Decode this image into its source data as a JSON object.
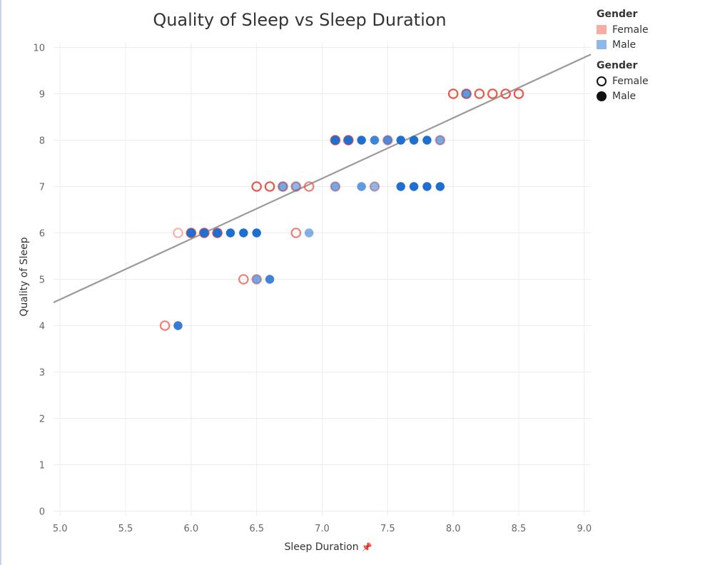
{
  "chart_data": {
    "type": "scatter",
    "title": "Quality of Sleep vs Sleep Duration",
    "xlabel": "Sleep Duration",
    "ylabel": "Quality of Sleep",
    "xlim": [
      4.95,
      9.05
    ],
    "ylim": [
      -0.1,
      10.1
    ],
    "x_ticks": [
      "5.0",
      "5.5",
      "6.0",
      "6.5",
      "7.0",
      "7.5",
      "8.0",
      "8.5",
      "9.0"
    ],
    "y_ticks": [
      "0",
      "1",
      "2",
      "3",
      "4",
      "5",
      "6",
      "7",
      "8",
      "9",
      "10"
    ],
    "grid": true,
    "trend_line": {
      "x": [
        4.95,
        9.05
      ],
      "y": [
        4.5,
        9.85
      ]
    },
    "series": [
      {
        "name": "Female",
        "marker": "open-circle",
        "color": "#e8574a",
        "points": [
          {
            "x": 5.8,
            "y": 4,
            "alpha": 0.75
          },
          {
            "x": 6.4,
            "y": 5,
            "alpha": 0.75
          },
          {
            "x": 6.5,
            "y": 5,
            "alpha": 0.6
          },
          {
            "x": 5.9,
            "y": 6,
            "alpha": 0.45
          },
          {
            "x": 6.0,
            "y": 6,
            "alpha": 1
          },
          {
            "x": 6.1,
            "y": 6,
            "alpha": 1
          },
          {
            "x": 6.2,
            "y": 6,
            "alpha": 1
          },
          {
            "x": 6.8,
            "y": 6,
            "alpha": 0.75
          },
          {
            "x": 6.5,
            "y": 7,
            "alpha": 1
          },
          {
            "x": 6.6,
            "y": 7,
            "alpha": 1
          },
          {
            "x": 6.7,
            "y": 7,
            "alpha": 0.85
          },
          {
            "x": 6.8,
            "y": 7,
            "alpha": 0.75
          },
          {
            "x": 6.9,
            "y": 7,
            "alpha": 0.75
          },
          {
            "x": 7.1,
            "y": 7,
            "alpha": 0.6
          },
          {
            "x": 7.4,
            "y": 7,
            "alpha": 0.55
          },
          {
            "x": 7.1,
            "y": 8,
            "alpha": 1
          },
          {
            "x": 7.2,
            "y": 8,
            "alpha": 1
          },
          {
            "x": 7.5,
            "y": 8,
            "alpha": 0.6
          },
          {
            "x": 7.9,
            "y": 8,
            "alpha": 0.6
          },
          {
            "x": 8.0,
            "y": 9,
            "alpha": 1
          },
          {
            "x": 8.1,
            "y": 9,
            "alpha": 1
          },
          {
            "x": 8.2,
            "y": 9,
            "alpha": 1
          },
          {
            "x": 8.3,
            "y": 9,
            "alpha": 1
          },
          {
            "x": 8.4,
            "y": 9,
            "alpha": 1
          },
          {
            "x": 8.5,
            "y": 9,
            "alpha": 1
          }
        ]
      },
      {
        "name": "Male",
        "marker": "filled-circle",
        "color": "#1f6fd1",
        "points": [
          {
            "x": 5.9,
            "y": 4,
            "alpha": 0.9
          },
          {
            "x": 6.5,
            "y": 5,
            "alpha": 0.6
          },
          {
            "x": 6.6,
            "y": 5,
            "alpha": 0.85
          },
          {
            "x": 6.0,
            "y": 6,
            "alpha": 1
          },
          {
            "x": 6.1,
            "y": 6,
            "alpha": 1
          },
          {
            "x": 6.2,
            "y": 6,
            "alpha": 1
          },
          {
            "x": 6.3,
            "y": 6,
            "alpha": 1
          },
          {
            "x": 6.4,
            "y": 6,
            "alpha": 1
          },
          {
            "x": 6.5,
            "y": 6,
            "alpha": 1
          },
          {
            "x": 6.9,
            "y": 6,
            "alpha": 0.55
          },
          {
            "x": 6.7,
            "y": 7,
            "alpha": 0.6
          },
          {
            "x": 6.8,
            "y": 7,
            "alpha": 0.5
          },
          {
            "x": 7.1,
            "y": 7,
            "alpha": 0.6
          },
          {
            "x": 7.3,
            "y": 7,
            "alpha": 0.7
          },
          {
            "x": 7.4,
            "y": 7,
            "alpha": 0.5
          },
          {
            "x": 7.6,
            "y": 7,
            "alpha": 1
          },
          {
            "x": 7.7,
            "y": 7,
            "alpha": 1
          },
          {
            "x": 7.8,
            "y": 7,
            "alpha": 1
          },
          {
            "x": 7.9,
            "y": 7,
            "alpha": 1
          },
          {
            "x": 7.1,
            "y": 8,
            "alpha": 1
          },
          {
            "x": 7.2,
            "y": 8,
            "alpha": 1
          },
          {
            "x": 7.3,
            "y": 8,
            "alpha": 1
          },
          {
            "x": 7.4,
            "y": 8,
            "alpha": 0.85
          },
          {
            "x": 7.5,
            "y": 8,
            "alpha": 0.8
          },
          {
            "x": 7.6,
            "y": 8,
            "alpha": 1
          },
          {
            "x": 7.7,
            "y": 8,
            "alpha": 1
          },
          {
            "x": 7.8,
            "y": 8,
            "alpha": 1
          },
          {
            "x": 7.9,
            "y": 8,
            "alpha": 0.6
          },
          {
            "x": 8.1,
            "y": 9,
            "alpha": 0.7
          }
        ]
      }
    ]
  },
  "legend": {
    "color": {
      "title": "Gender",
      "items": [
        {
          "label": "Female",
          "color": "#f4aea6"
        },
        {
          "label": "Male",
          "color": "#8fb8ea"
        }
      ]
    },
    "shape": {
      "title": "Gender",
      "items": [
        {
          "label": "Female",
          "marker": "open-circle"
        },
        {
          "label": "Male",
          "marker": "filled-circle"
        }
      ]
    }
  },
  "x_axis_pin_icon": "pin-icon",
  "x_axis_pin_glyph": "📌"
}
